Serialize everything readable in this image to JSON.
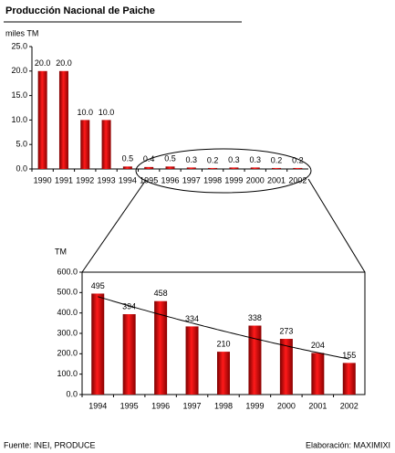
{
  "chart_data": [
    {
      "type": "bar",
      "title": "Producción Nacional de Paiche",
      "y_label": "miles TM",
      "categories": [
        "1990",
        "1991",
        "1992",
        "1993",
        "1994",
        "1995",
        "1996",
        "1997",
        "1998",
        "1999",
        "2000",
        "2001",
        "2002"
      ],
      "values": [
        20,
        20,
        10,
        10,
        0.5,
        0.4,
        0.5,
        0.3,
        0.2,
        0.3,
        0.3,
        0.2,
        0.2
      ],
      "value_labels": [
        "20.0",
        "20.0",
        "10.0",
        "10.0",
        "0.5",
        "0.4",
        "0.5",
        "0.3",
        "0.2",
        "0.3",
        "0.3",
        "0.2",
        "0.2"
      ],
      "color": "#e00000",
      "ylim": [
        0,
        25
      ],
      "yticks": [
        {
          "value": 0,
          "label": "0.0"
        },
        {
          "value": 5,
          "label": "5.0"
        },
        {
          "value": 10,
          "label": "10.0"
        },
        {
          "value": 15,
          "label": "15.0"
        },
        {
          "value": 20,
          "label": "20.0"
        },
        {
          "value": 25,
          "label": "25.0"
        }
      ]
    },
    {
      "type": "bar",
      "y_label": "TM",
      "categories": [
        "1994",
        "1995",
        "1996",
        "1997",
        "1998",
        "1999",
        "2000",
        "2001",
        "2002"
      ],
      "values": [
        495,
        394,
        458,
        334,
        210,
        338,
        273,
        204,
        155
      ],
      "color": "#e00000",
      "trend_line": true,
      "ylim": [
        0,
        600
      ],
      "yticks": [
        {
          "value": 0,
          "label": "0.0"
        },
        {
          "value": 100,
          "label": "100.0"
        },
        {
          "value": 200,
          "label": "200.0"
        },
        {
          "value": 300,
          "label": "300.0"
        },
        {
          "value": 400,
          "label": "400.0"
        },
        {
          "value": 500,
          "label": "500.0"
        },
        {
          "value": 600,
          "label": "600.0"
        }
      ]
    }
  ],
  "footer": {
    "source": "Fuente: INEI, PRODUCE",
    "credit": "Elaboración: MAXIMIXI"
  }
}
